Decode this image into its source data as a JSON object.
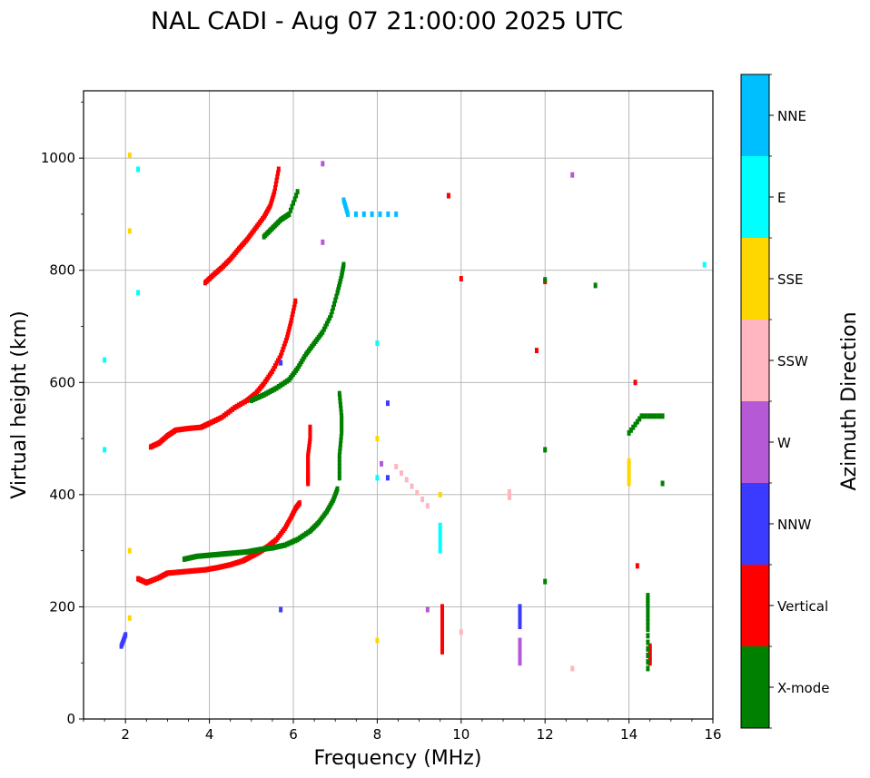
{
  "chart_data": {
    "type": "scatter",
    "title": "NAL CADI - Aug 07 21:00:00 2025 UTC",
    "xlabel": "Frequency (MHz)",
    "ylabel": "Virtual height (km)",
    "xlim": [
      1,
      16
    ],
    "ylim": [
      0,
      1120
    ],
    "xticks": [
      2,
      4,
      6,
      8,
      10,
      12,
      14,
      16
    ],
    "xtick_labels": [
      "2",
      "4",
      "6",
      "8",
      "10",
      "12",
      "14",
      "16"
    ],
    "yticks": [
      0,
      200,
      400,
      600,
      800,
      1000
    ],
    "ytick_labels": [
      "0",
      "200",
      "400",
      "600",
      "800",
      "1000"
    ],
    "grid": true,
    "colorbar": {
      "label": "Azimuth Direction",
      "categories": [
        {
          "name": "X-mode",
          "color": "#008000"
        },
        {
          "name": "Vertical",
          "color": "#ff0000"
        },
        {
          "name": "NNW",
          "color": "#3b3bff"
        },
        {
          "name": "W",
          "color": "#b559d6"
        },
        {
          "name": "SSW",
          "color": "#ffb6c1"
        },
        {
          "name": "SSE",
          "color": "#ffd700"
        },
        {
          "name": "E",
          "color": "#00ffff"
        },
        {
          "name": "NNE",
          "color": "#00bfff"
        }
      ]
    },
    "series": [
      {
        "name": "Vertical",
        "traces": [
          {
            "x": [
              2.3,
              2.5,
              2.8,
              3.0,
              3.3,
              3.6,
              3.9,
              4.2,
              4.5,
              4.8,
              5.0,
              5.2,
              5.4,
              5.6,
              5.8,
              5.95,
              6.05,
              6.15
            ],
            "y": [
              250,
              243,
              252,
              260,
              262,
              264,
              266,
              270,
              275,
              282,
              290,
              298,
              308,
              320,
              340,
              360,
              375,
              385
            ]
          },
          {
            "x": [
              2.6,
              2.8,
              3.0,
              3.2,
              3.5,
              3.8,
              4.0,
              4.3,
              4.6,
              4.9,
              5.1,
              5.3,
              5.5,
              5.7,
              5.85,
              5.95,
              6.05
            ],
            "y": [
              485,
              492,
              505,
              515,
              518,
              520,
              527,
              538,
              555,
              568,
              580,
              598,
              620,
              648,
              680,
              710,
              745
            ]
          },
          {
            "x": [
              3.9,
              4.1,
              4.3,
              4.5,
              4.7,
              4.9,
              5.1,
              5.3,
              5.45,
              5.55,
              5.65
            ],
            "y": [
              778,
              792,
              805,
              820,
              838,
              855,
              875,
              895,
              915,
              940,
              980
            ]
          },
          {
            "x": [
              6.35,
              6.35,
              6.35,
              6.4,
              6.4
            ],
            "y": [
              420,
              440,
              470,
              500,
              520
            ]
          },
          {
            "x": [
              9.55,
              9.55,
              9.55,
              9.55,
              9.55
            ],
            "y": [
              120,
              140,
              160,
              180,
              200
            ]
          },
          {
            "x": [
              14.15,
              14.2,
              14.5,
              14.5
            ],
            "y": [
              600,
              273,
              130,
              100
            ]
          },
          {
            "x": [
              12.0,
              11.8,
              10.0,
              9.7
            ],
            "y": [
              780,
              657,
              785,
              933
            ]
          }
        ]
      },
      {
        "name": "X-mode",
        "traces": [
          {
            "x": [
              3.4,
              3.7,
              4.0,
              4.3,
              4.6,
              4.9,
              5.2,
              5.5,
              5.8,
              6.1,
              6.4,
              6.6,
              6.8,
              6.95,
              7.05
            ],
            "y": [
              285,
              290,
              292,
              294,
              296,
              298,
              302,
              305,
              310,
              320,
              335,
              350,
              370,
              390,
              410
            ]
          },
          {
            "x": [
              5.0,
              5.3,
              5.6,
              5.9,
              6.1,
              6.3,
              6.5,
              6.7,
              6.9,
              7.05,
              7.15,
              7.2
            ],
            "y": [
              568,
              578,
              590,
              605,
              625,
              650,
              670,
              690,
              720,
              760,
              790,
              810
            ]
          },
          {
            "x": [
              5.3,
              5.5,
              5.7,
              5.9,
              6.1
            ],
            "y": [
              860,
              875,
              890,
              900,
              940
            ]
          },
          {
            "x": [
              7.1,
              7.1,
              7.15,
              7.15,
              7.1
            ],
            "y": [
              430,
              470,
              510,
              540,
              580
            ]
          },
          {
            "x": [
              14.45,
              14.45,
              14.45,
              14.45
            ],
            "y": [
              90,
              160,
              200,
              220
            ]
          },
          {
            "x": [
              14.0,
              14.3,
              14.8,
              14.8
            ],
            "y": [
              510,
              540,
              540,
              420
            ]
          },
          {
            "x": [
              12.0,
              12.0,
              12.0,
              13.2
            ],
            "y": [
              783,
              480,
              245,
              773
            ]
          }
        ]
      },
      {
        "name": "E",
        "traces": [
          {
            "x": [
              1.5,
              1.5,
              2.3,
              2.3,
              8.0,
              8.0,
              9.5,
              9.5,
              15.8
            ],
            "y": [
              640,
              480,
              980,
              760,
              670,
              430,
              345,
              300,
              810
            ]
          }
        ]
      },
      {
        "name": "SSE",
        "traces": [
          {
            "x": [
              2.1,
              2.1,
              2.1,
              2.1,
              8.0,
              8.0,
              14.0,
              14.0,
              9.5
            ],
            "y": [
              1005,
              870,
              300,
              180,
              500,
              140,
              420,
              460,
              400
            ]
          }
        ]
      },
      {
        "name": "NNW",
        "traces": [
          {
            "x": [
              1.9,
              2.0,
              5.7,
              5.7,
              8.25,
              8.25,
              11.4,
              11.4
            ],
            "y": [
              130,
              150,
              635,
              195,
              563,
              430,
              165,
              200
            ]
          }
        ]
      },
      {
        "name": "W",
        "traces": [
          {
            "x": [
              6.7,
              8.1,
              9.2,
              11.4,
              11.4,
              12.65,
              6.7
            ],
            "y": [
              990,
              455,
              195,
              100,
              140,
              970,
              850
            ]
          }
        ]
      },
      {
        "name": "SSW",
        "traces": [
          {
            "x": [
              11.15,
              11.15,
              12.65,
              10.0,
              8.45,
              9.2
            ],
            "y": [
              395,
              405,
              90,
              155,
              450,
              380
            ]
          }
        ]
      },
      {
        "name": "NNE",
        "traces": [
          {
            "x": [
              7.2,
              7.3,
              8.45
            ],
            "y": [
              925,
              900,
              900
            ]
          }
        ]
      }
    ]
  }
}
